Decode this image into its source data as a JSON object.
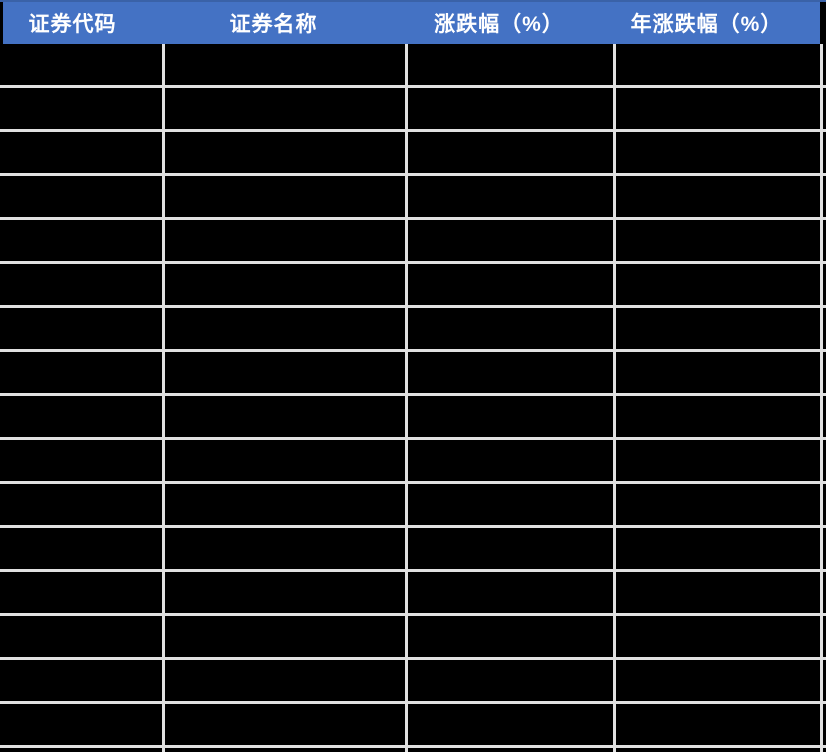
{
  "table": {
    "columns": [
      {
        "key": "code",
        "label": "证券代码"
      },
      {
        "key": "name",
        "label": "证券名称"
      },
      {
        "key": "change",
        "label": "涨跌幅（%）"
      },
      {
        "key": "annual_change",
        "label": "年涨跌幅（%）"
      }
    ],
    "rows": [
      {
        "code": "",
        "name": "",
        "change": "",
        "annual_change": ""
      },
      {
        "code": "",
        "name": "",
        "change": "",
        "annual_change": ""
      },
      {
        "code": "",
        "name": "",
        "change": "",
        "annual_change": ""
      },
      {
        "code": "",
        "name": "",
        "change": "",
        "annual_change": ""
      },
      {
        "code": "",
        "name": "",
        "change": "",
        "annual_change": ""
      },
      {
        "code": "",
        "name": "",
        "change": "",
        "annual_change": ""
      },
      {
        "code": "",
        "name": "",
        "change": "",
        "annual_change": ""
      },
      {
        "code": "",
        "name": "",
        "change": "",
        "annual_change": ""
      },
      {
        "code": "",
        "name": "",
        "change": "",
        "annual_change": ""
      },
      {
        "code": "",
        "name": "",
        "change": "",
        "annual_change": ""
      },
      {
        "code": "",
        "name": "",
        "change": "",
        "annual_change": ""
      },
      {
        "code": "",
        "name": "",
        "change": "",
        "annual_change": ""
      },
      {
        "code": "",
        "name": "",
        "change": "",
        "annual_change": ""
      },
      {
        "code": "",
        "name": "",
        "change": "",
        "annual_change": ""
      },
      {
        "code": "",
        "name": "",
        "change": "",
        "annual_change": ""
      },
      {
        "code": "",
        "name": "",
        "change": "",
        "annual_change": ""
      }
    ],
    "row_count": 16,
    "cells_blacked_out": true,
    "colors": {
      "header_bg": "#4472C4",
      "header_top_line": "#3A62A8",
      "header_text": "#FFFFFF",
      "cell_bg": "#000000",
      "gridline": "#E0E0E0"
    }
  }
}
